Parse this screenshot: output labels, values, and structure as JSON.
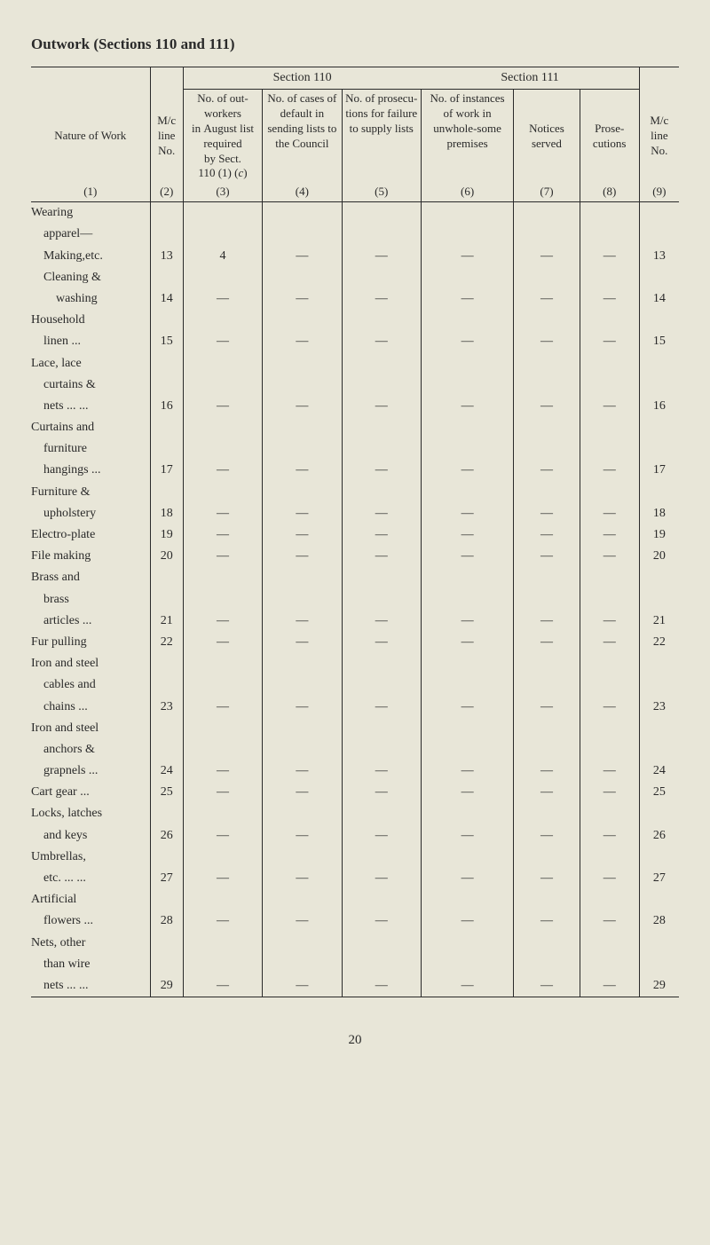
{
  "title": "Outwork (Sections 110 and 111)",
  "section_headers": {
    "s110": "Section 110",
    "s111": "Section 111"
  },
  "column_headers": {
    "nature": "Nature of Work",
    "col2": "M/c line No.",
    "col3": "No. of out-workers in August list required by Sect. 110 (1) (c)",
    "col4": "No. of cases of default in sending lists to the Council",
    "col5": "No. of prosecu-tions for failure to supply lists",
    "col6": "No. of instances of work in unwhole-some premises",
    "col7": "Notices served",
    "col8": "Prose-cutions",
    "col9": "M/c line No."
  },
  "column_nums": [
    "(1)",
    "(2)",
    "(3)",
    "(4)",
    "(5)",
    "(6)",
    "(7)",
    "(8)",
    "(9)"
  ],
  "rows": [
    {
      "nature_lines": [
        "Wearing",
        "  apparel—",
        "  Making,etc."
      ],
      "c2": "13",
      "c3": "4",
      "c4": "—",
      "c5": "—",
      "c6": "—",
      "c7": "—",
      "c8": "—",
      "c9": "13"
    },
    {
      "nature_lines": [
        "  Cleaning &",
        "    washing"
      ],
      "c2": "14",
      "c3": "—",
      "c4": "—",
      "c5": "—",
      "c6": "—",
      "c7": "—",
      "c8": "—",
      "c9": "14"
    },
    {
      "nature_lines": [
        "Household",
        "  linen    ..."
      ],
      "c2": "15",
      "c3": "—",
      "c4": "—",
      "c5": "—",
      "c6": "—",
      "c7": "—",
      "c8": "—",
      "c9": "15"
    },
    {
      "nature_lines": [
        "Lace, lace",
        "  curtains &",
        "  nets ...  ..."
      ],
      "c2": "16",
      "c3": "—",
      "c4": "—",
      "c5": "—",
      "c6": "—",
      "c7": "—",
      "c8": "—",
      "c9": "16"
    },
    {
      "nature_lines": [
        "Curtains and",
        "  furniture",
        "  hangings ..."
      ],
      "c2": "17",
      "c3": "—",
      "c4": "—",
      "c5": "—",
      "c6": "—",
      "c7": "—",
      "c8": "—",
      "c9": "17"
    },
    {
      "nature_lines": [
        "Furniture &",
        "  upholstery"
      ],
      "c2": "18",
      "c3": "—",
      "c4": "—",
      "c5": "—",
      "c6": "—",
      "c7": "—",
      "c8": "—",
      "c9": "18"
    },
    {
      "nature_lines": [
        "Electro-plate"
      ],
      "c2": "19",
      "c3": "—",
      "c4": "—",
      "c5": "—",
      "c6": "—",
      "c7": "—",
      "c8": "—",
      "c9": "19"
    },
    {
      "nature_lines": [
        "File making"
      ],
      "c2": "20",
      "c3": "—",
      "c4": "—",
      "c5": "—",
      "c6": "—",
      "c7": "—",
      "c8": "—",
      "c9": "20"
    },
    {
      "nature_lines": [
        "Brass and",
        "  brass",
        "  articles  ..."
      ],
      "c2": "21",
      "c3": "—",
      "c4": "—",
      "c5": "—",
      "c6": "—",
      "c7": "—",
      "c8": "—",
      "c9": "21"
    },
    {
      "nature_lines": [
        "Fur pulling"
      ],
      "c2": "22",
      "c3": "—",
      "c4": "—",
      "c5": "—",
      "c6": "—",
      "c7": "—",
      "c8": "—",
      "c9": "22"
    },
    {
      "nature_lines": [
        "Iron and steel",
        "  cables and",
        "  chains   ..."
      ],
      "c2": "23",
      "c3": "—",
      "c4": "—",
      "c5": "—",
      "c6": "—",
      "c7": "—",
      "c8": "—",
      "c9": "23"
    },
    {
      "nature_lines": [
        "Iron and steel",
        "  anchors &",
        "  grapnels ..."
      ],
      "c2": "24",
      "c3": "—",
      "c4": "—",
      "c5": "—",
      "c6": "—",
      "c7": "—",
      "c8": "—",
      "c9": "24"
    },
    {
      "nature_lines": [
        "Cart gear  ..."
      ],
      "c2": "25",
      "c3": "—",
      "c4": "—",
      "c5": "—",
      "c6": "—",
      "c7": "—",
      "c8": "—",
      "c9": "25"
    },
    {
      "nature_lines": [
        "Locks, latches",
        "  and keys"
      ],
      "c2": "26",
      "c3": "—",
      "c4": "—",
      "c5": "—",
      "c6": "—",
      "c7": "—",
      "c8": "—",
      "c9": "26"
    },
    {
      "nature_lines": [
        "Umbrellas,",
        "  etc. ...  ..."
      ],
      "c2": "27",
      "c3": "—",
      "c4": "—",
      "c5": "—",
      "c6": "—",
      "c7": "—",
      "c8": "—",
      "c9": "27"
    },
    {
      "nature_lines": [
        "Artificial",
        "  flowers  ..."
      ],
      "c2": "28",
      "c3": "—",
      "c4": "—",
      "c5": "—",
      "c6": "—",
      "c7": "—",
      "c8": "—",
      "c9": "28"
    },
    {
      "nature_lines": [
        "Nets, other",
        "  than wire",
        "  nets ...  ..."
      ],
      "c2": "29",
      "c3": "—",
      "c4": "—",
      "c5": "—",
      "c6": "—",
      "c7": "—",
      "c8": "—",
      "c9": "29"
    }
  ],
  "page_number": "20",
  "colors": {
    "background": "#e8e6d8",
    "text": "#2a2a2a",
    "rule": "#2a2a2a"
  }
}
